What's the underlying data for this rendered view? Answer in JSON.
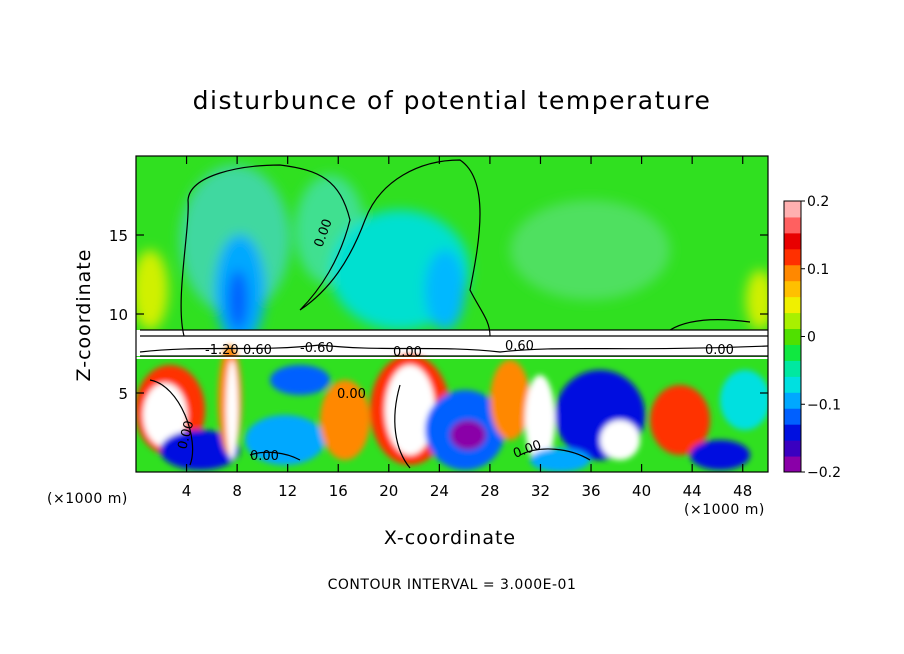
{
  "chart_data": {
    "type": "heatmap",
    "title": "disturbunce of potential temperature",
    "xlabel": "X-coordinate",
    "ylabel": "Z-coordinate",
    "x_unit": "(×1000 m)",
    "y_unit": "(×1000 m)",
    "xlim": [
      0,
      50
    ],
    "ylim": [
      0,
      20
    ],
    "x_ticks": [
      4,
      8,
      12,
      16,
      20,
      24,
      28,
      32,
      36,
      40,
      44,
      48
    ],
    "y_ticks": [
      5,
      10,
      15
    ],
    "colorbar": {
      "range": [
        -0.2,
        0.2
      ],
      "tick_labels": [
        "0.2",
        "0.1",
        "0",
        "−0.1",
        "−0.2"
      ],
      "tick_values": [
        0.2,
        0.1,
        0,
        -0.1,
        -0.2
      ],
      "colors": [
        "#8a00a8",
        "#3a00c0",
        "#0010e0",
        "#0060ff",
        "#00a8ff",
        "#00e0e0",
        "#00e8a0",
        "#10e840",
        "#50e000",
        "#a8f000",
        "#f0f000",
        "#ffc000",
        "#ff8800",
        "#ff3000",
        "#e80000",
        "#ff6060",
        "#ffb0b0"
      ]
    },
    "contour_labels": [
      "0.00",
      "0.00",
      "0.00",
      "0.00",
      "0.60",
      "-1.20",
      "-0.60",
      "0.00",
      "0.60",
      "0.00",
      "0.00"
    ],
    "contour_interval": "CONTOUR INTERVAL = 3.000E-01"
  }
}
